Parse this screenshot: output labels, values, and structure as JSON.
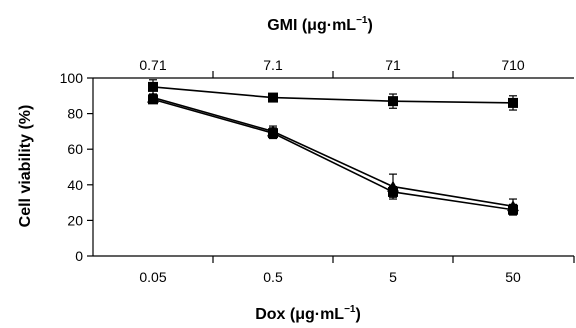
{
  "chart_data": {
    "type": "line",
    "x_bottom_label_main": "Dox (μg·mL",
    "x_bottom_label_sup": "−1",
    "x_bottom_label_tail": ")",
    "x_top_label_main": "GMI (μg·mL",
    "x_top_label_sup": "−1",
    "x_top_label_tail": ")",
    "ylabel": "Cell viability (%)",
    "x_bottom_ticks": [
      "0.05",
      "0.5",
      "5",
      "50"
    ],
    "x_top_ticks": [
      "0.71",
      "7.1",
      "71",
      "710"
    ],
    "y_ticks": [
      "0",
      "20",
      "40",
      "60",
      "80",
      "100"
    ],
    "ylim": [
      0,
      100
    ],
    "x_log_scale": true,
    "series": [
      {
        "marker": "square",
        "values": [
          95,
          89,
          87,
          86
        ],
        "errors": [
          4,
          2,
          4,
          4
        ]
      },
      {
        "marker": "triangle",
        "values": [
          89,
          70,
          39,
          28
        ],
        "errors": [
          2,
          3,
          7,
          4
        ]
      },
      {
        "marker": "square",
        "values": [
          88,
          69,
          36,
          26
        ],
        "errors": [
          2,
          3,
          3,
          3
        ]
      }
    ]
  }
}
